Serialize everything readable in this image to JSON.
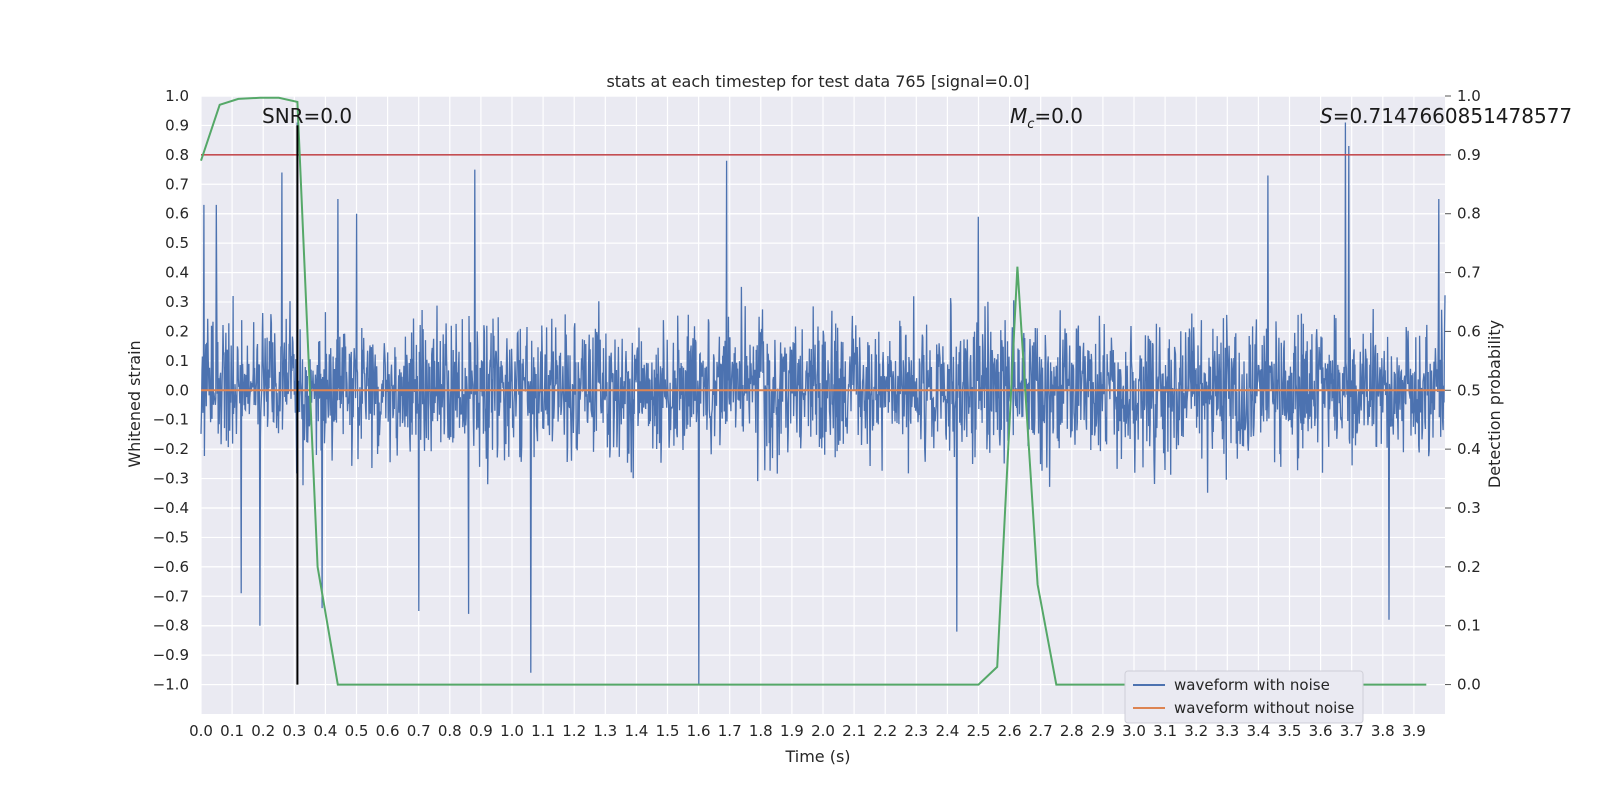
{
  "chart_data": {
    "type": "line",
    "title": "stats at each timestep for test data 765 [signal=0.0]",
    "xlabel": "Time (s)",
    "ylabel": "Whitened strain",
    "ylabel_right": "Detection probability",
    "xlim": [
      0.0,
      4.0
    ],
    "ylim": [
      -1.1,
      1.0
    ],
    "ylim_right": [
      -0.05,
      1.0
    ],
    "x_ticks": [
      "0.0",
      "0.1",
      "0.2",
      "0.3",
      "0.4",
      "0.5",
      "0.6",
      "0.7",
      "0.8",
      "0.9",
      "1.0",
      "1.1",
      "1.2",
      "1.3",
      "1.4",
      "1.5",
      "1.6",
      "1.7",
      "1.8",
      "1.9",
      "2.0",
      "2.1",
      "2.2",
      "2.3",
      "2.4",
      "2.5",
      "2.6",
      "2.7",
      "2.8",
      "2.9",
      "3.0",
      "3.1",
      "3.2",
      "3.3",
      "3.4",
      "3.5",
      "3.6",
      "3.7",
      "3.8",
      "3.9"
    ],
    "y_ticks": [
      "1.0",
      "0.9",
      "0.8",
      "0.7",
      "0.6",
      "0.5",
      "0.4",
      "0.3",
      "0.2",
      "0.1",
      "0.0",
      "−0.1",
      "−0.2",
      "−0.3",
      "−0.4",
      "−0.5",
      "−0.6",
      "−0.7",
      "−0.8",
      "−0.9",
      "−1.0"
    ],
    "y_right_ticks": [
      "1.0",
      "0.9",
      "0.8",
      "0.7",
      "0.6",
      "0.5",
      "0.4",
      "0.3",
      "0.2",
      "0.1",
      "0.0"
    ],
    "annotations": {
      "snr": "SNR=0.0",
      "mc_symbol": "M",
      "mc_sub": "c",
      "mc_value": "=0.0",
      "s_symbol": "S",
      "s_value": "=0.7147660851478577"
    },
    "threshold": {
      "axis": "right",
      "value": 0.9,
      "color": "#c44e52"
    },
    "marker_line": {
      "x": 0.31,
      "y_from": -1.0,
      "y_to": 0.9,
      "color": "#000000"
    },
    "series": [
      {
        "name": "waveform with noise",
        "color": "#4c72b0",
        "axis": "left",
        "description_type": "dense noise",
        "x_range": [
          0.0,
          4.0
        ],
        "envelope": [
          -0.45,
          0.45
        ],
        "spikes": [
          {
            "x": 0.01,
            "y": 0.63
          },
          {
            "x": 0.05,
            "y": 0.63
          },
          {
            "x": 0.13,
            "y": -0.69
          },
          {
            "x": 0.19,
            "y": -0.8
          },
          {
            "x": 0.26,
            "y": 0.74
          },
          {
            "x": 0.31,
            "y": 0.91
          },
          {
            "x": 0.39,
            "y": -0.74
          },
          {
            "x": 0.44,
            "y": 0.65
          },
          {
            "x": 0.5,
            "y": 0.6
          },
          {
            "x": 0.7,
            "y": -0.75
          },
          {
            "x": 0.88,
            "y": 0.75
          },
          {
            "x": 0.86,
            "y": -0.76
          },
          {
            "x": 1.06,
            "y": -0.96
          },
          {
            "x": 1.6,
            "y": -1.0
          },
          {
            "x": 1.69,
            "y": 0.78
          },
          {
            "x": 2.43,
            "y": -0.82
          },
          {
            "x": 2.5,
            "y": 0.59
          },
          {
            "x": 3.43,
            "y": 0.73
          },
          {
            "x": 3.68,
            "y": 0.91
          },
          {
            "x": 3.69,
            "y": 0.83
          },
          {
            "x": 3.82,
            "y": -0.78
          },
          {
            "x": 3.98,
            "y": 0.65
          }
        ]
      },
      {
        "name": "waveform without noise",
        "color": "#dd8452",
        "axis": "left",
        "x": [
          0.0,
          4.0
        ],
        "y": [
          0.0,
          0.0
        ]
      },
      {
        "name": "",
        "color": "#55a868",
        "axis": "right",
        "x": [
          0.0,
          0.06,
          0.12,
          0.19,
          0.25,
          0.31,
          0.375,
          0.44,
          0.5,
          1.0,
          1.5,
          2.0,
          2.5,
          2.56,
          2.625,
          2.69,
          2.75,
          3.0,
          3.5,
          3.94
        ],
        "y": [
          0.89,
          0.985,
          0.995,
          0.997,
          0.997,
          0.99,
          0.2,
          0.0,
          0.0,
          0.0,
          0.0,
          0.0,
          0.0,
          0.03,
          0.71,
          0.17,
          0.0,
          0.0,
          0.0,
          0.0
        ]
      }
    ],
    "grid": true,
    "legend": "bottom-right",
    "colors": {
      "axes_bg": "#eaeaf2",
      "grid": "#ffffff",
      "text": "#262626"
    }
  }
}
